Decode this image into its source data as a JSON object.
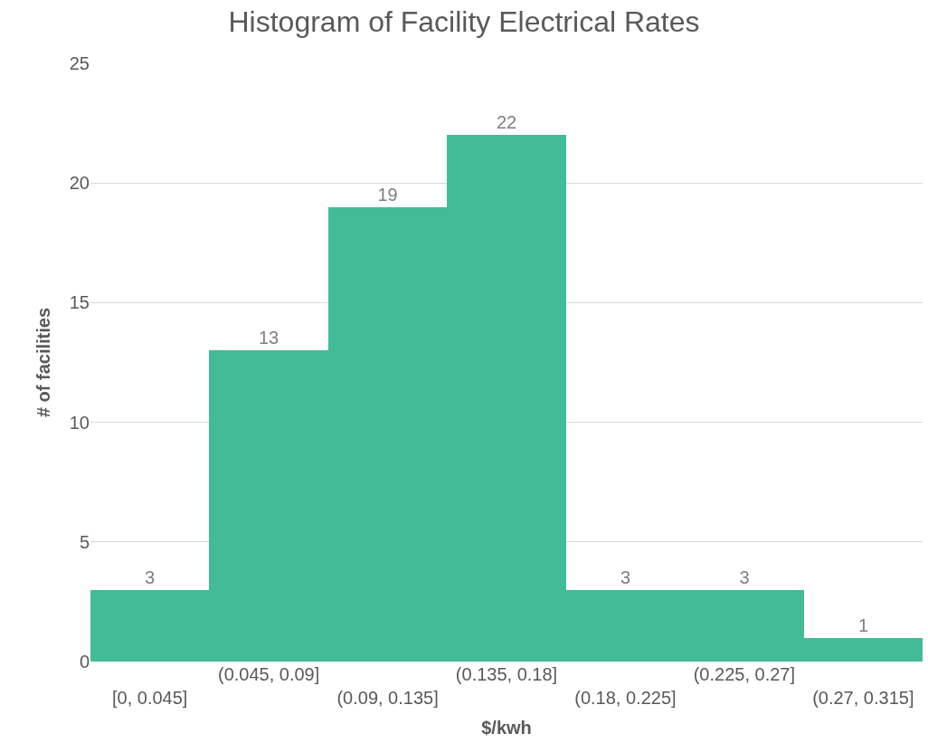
{
  "chart_data": {
    "type": "bar",
    "title": "Histogram of Facility Electrical Rates",
    "xlabel": "$/kwh",
    "ylabel": "# of facilities",
    "categories": [
      "[0, 0.045]",
      "(0.045, 0.09]",
      "(0.09, 0.135]",
      "(0.135, 0.18]",
      "(0.18, 0.225]",
      "(0.225, 0.27]",
      "(0.27, 0.315]"
    ],
    "values": [
      3,
      13,
      19,
      22,
      3,
      3,
      1
    ],
    "color": "#43bb97",
    "ylim": [
      0,
      25
    ],
    "yticks": [
      0,
      5,
      10,
      15,
      20,
      25
    ],
    "grid": "y",
    "data_labels": true,
    "legend": false
  }
}
